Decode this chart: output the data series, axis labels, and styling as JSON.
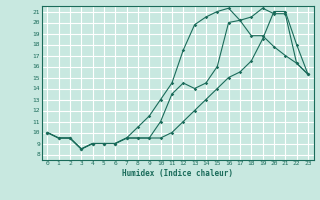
{
  "xlabel": "Humidex (Indice chaleur)",
  "bg_color": "#c8e8e0",
  "grid_color": "#ffffff",
  "line_color": "#1a6b5a",
  "xlim": [
    -0.5,
    23.5
  ],
  "ylim": [
    7.5,
    21.5
  ],
  "xticks": [
    0,
    1,
    2,
    3,
    4,
    5,
    6,
    7,
    8,
    9,
    10,
    11,
    12,
    13,
    14,
    15,
    16,
    17,
    18,
    19,
    20,
    21,
    22,
    23
  ],
  "yticks": [
    8,
    9,
    10,
    11,
    12,
    13,
    14,
    15,
    16,
    17,
    18,
    19,
    20,
    21
  ],
  "line1_x": [
    0,
    1,
    2,
    3,
    4,
    5,
    6,
    7,
    8,
    9,
    10,
    11,
    12,
    13,
    14,
    15,
    16,
    17,
    18,
    19,
    20,
    21,
    22,
    23
  ],
  "line1_y": [
    10,
    9.5,
    9.5,
    8.5,
    9,
    9,
    9,
    9.5,
    9.5,
    9.5,
    11,
    13.5,
    14.5,
    14,
    14.5,
    16,
    20,
    20.2,
    20.5,
    21.3,
    20.8,
    20.8,
    16.3,
    15.3
  ],
  "line2_x": [
    0,
    1,
    2,
    3,
    4,
    5,
    6,
    7,
    8,
    9,
    10,
    11,
    12,
    13,
    14,
    15,
    16,
    17,
    18,
    19,
    20,
    21,
    22,
    23
  ],
  "line2_y": [
    10,
    9.5,
    9.5,
    8.5,
    9,
    9,
    9,
    9.5,
    10.5,
    11.5,
    13,
    14.5,
    17.5,
    19.8,
    20.5,
    21,
    21.3,
    20.2,
    18.8,
    18.8,
    17.8,
    17,
    16.3,
    15.3
  ],
  "line3_x": [
    0,
    1,
    2,
    3,
    4,
    5,
    6,
    7,
    8,
    9,
    10,
    11,
    12,
    13,
    14,
    15,
    16,
    17,
    18,
    19,
    20,
    21,
    22,
    23
  ],
  "line3_y": [
    10,
    9.5,
    9.5,
    8.5,
    9,
    9,
    9,
    9.5,
    9.5,
    9.5,
    9.5,
    10,
    11,
    12,
    13,
    14,
    15,
    15.5,
    16.5,
    18.5,
    21,
    21,
    18,
    15.3
  ]
}
